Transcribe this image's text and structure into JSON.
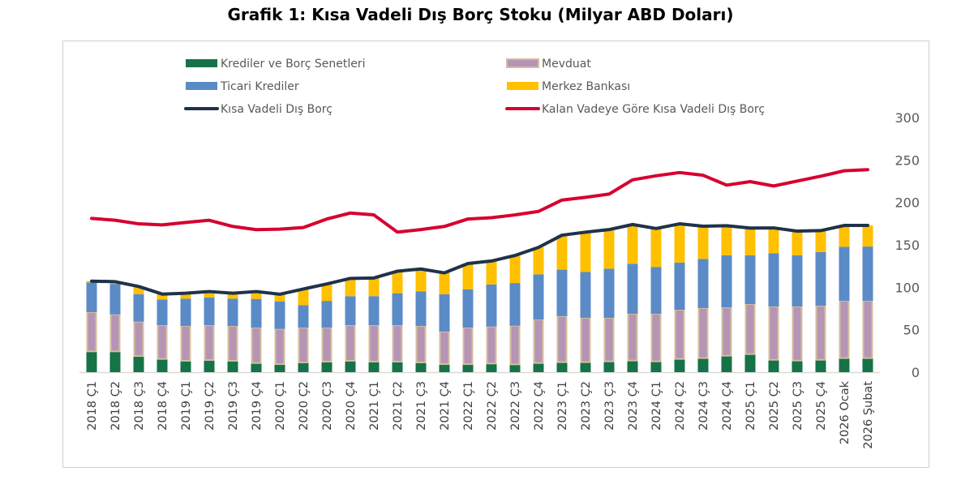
{
  "chart_data": {
    "type": "bar",
    "stacked": true,
    "title": "Grafik 1: Kısa Vadeli Dış Borç Stoku (Milyar ABD Doları)",
    "xlabel": "",
    "ylabel": "",
    "ylim": [
      0,
      300
    ],
    "yticks": [
      "0",
      "50",
      "100",
      "150",
      "200",
      "250",
      "300"
    ],
    "y_axis_position": "right",
    "grid": false,
    "legend_placement": "top",
    "categories": [
      "2018 Ç1",
      "2018 Ç2",
      "2018 Ç3",
      "2018 Ç4",
      "2019 Ç1",
      "2019 Ç2",
      "2019 Ç3",
      "2019 Ç4",
      "2020 Ç1",
      "2020 Ç2",
      "2020 Ç3",
      "2020 Ç4",
      "2021 Ç1",
      "2021 Ç2",
      "2021 Ç3",
      "2021 Ç4",
      "2022 Ç1",
      "2022 Ç2",
      "2022 Ç3",
      "2022 Ç4",
      "2023 Ç1",
      "2023 Ç2",
      "2023 Ç3",
      "2023 Ç4",
      "2024 Ç1",
      "2024 Ç2",
      "2024 Ç3",
      "2024 Ç4",
      "2025 Ç1",
      "2025 Ç2",
      "2025 Ç3",
      "2025 Ç4",
      "2026 Ocak",
      "2026 Şubat"
    ],
    "series": [
      {
        "name": "Krediler ve Borç Senetleri",
        "kind": "bar",
        "color": "#157347",
        "values": [
          24.5,
          24.5,
          19,
          15.6,
          13.4,
          14.3,
          13.4,
          10.8,
          9.5,
          11.5,
          12.4,
          13.4,
          12.4,
          12.4,
          11.5,
          9.5,
          9.5,
          10.2,
          9.2,
          10.8,
          11.8,
          11.8,
          12.7,
          13.7,
          12.7,
          15.6,
          16.6,
          19.4,
          21.3,
          14.6,
          13.7,
          14.6,
          16.6,
          16.6
        ]
      },
      {
        "name": "Mevduat",
        "kind": "bar",
        "color": "#b594b6",
        "border": "#d4bf9a",
        "values": [
          46.2,
          43.5,
          40.5,
          39.8,
          41,
          41.1,
          41,
          41.7,
          41.5,
          41,
          40.1,
          42,
          43,
          43,
          42.9,
          38.3,
          43,
          43.6,
          45.5,
          51.2,
          54.2,
          52.2,
          51.3,
          55.1,
          56.1,
          57.9,
          58.9,
          57,
          58.9,
          62.8,
          63.7,
          63.7,
          67.4,
          67.4
        ]
      },
      {
        "name": "Ticari Krediler",
        "kind": "bar",
        "color": "#5b8bc7",
        "values": [
          35,
          36,
          32.5,
          30.3,
          32.2,
          32.6,
          32.2,
          33.8,
          32.4,
          26.5,
          31.5,
          34.1,
          34.1,
          37.6,
          40.9,
          44,
          45.2,
          49.6,
          50.3,
          53.3,
          54.8,
          54,
          57.9,
          59,
          55.2,
          55.7,
          58,
          61.4,
          57.6,
          62.6,
          60.4,
          63.3,
          63.8,
          64
        ]
      },
      {
        "name": "Merkez Bankası",
        "kind": "bar",
        "color": "#ffc000",
        "values": [
          1.6,
          2.6,
          9,
          6.3,
          6.4,
          7,
          6.4,
          8.7,
          8.4,
          19,
          20,
          21,
          21.5,
          26,
          26.3,
          25.2,
          30.3,
          27.6,
          32.5,
          31.7,
          40.6,
          47,
          46.1,
          46.2,
          45.3,
          45.6,
          38.5,
          34.8,
          32,
          30,
          28.4,
          25.2,
          25.1,
          24.9
        ]
      },
      {
        "name": "Kısa Vadeli Dış Borç",
        "kind": "line",
        "color": "#1f3249",
        "values": [
          107.3,
          106.6,
          101,
          92,
          93,
          95,
          93,
          95,
          91.8,
          98,
          104,
          110.5,
          111,
          119,
          121.6,
          117,
          128,
          131,
          137.5,
          147,
          161.4,
          165,
          168,
          174,
          169.3,
          174.8,
          172,
          172.6,
          169.8,
          170,
          166.2,
          166.8,
          172.9,
          172.9
        ]
      },
      {
        "name": "Kalan Vadeye Göre Kısa Vadeli Dış Borç",
        "kind": "line",
        "color": "#d6002f",
        "values": [
          181.2,
          179,
          174.8,
          173.5,
          176.4,
          179,
          171.7,
          167.9,
          168.5,
          170.4,
          180.5,
          187.5,
          185.3,
          165,
          168,
          171.7,
          180.5,
          182,
          185.3,
          189.4,
          202.8,
          206,
          209.8,
          226.6,
          231.4,
          235.2,
          232,
          220.4,
          224.5,
          219.4,
          225.2,
          230.9,
          237.3,
          238.6
        ]
      }
    ]
  }
}
